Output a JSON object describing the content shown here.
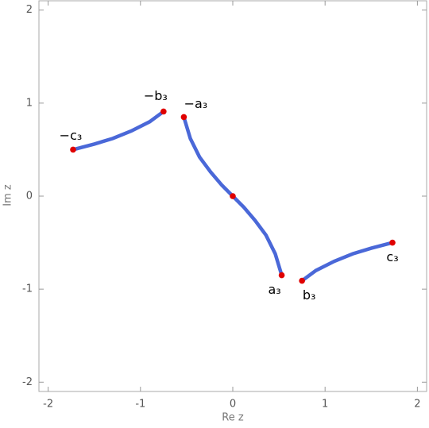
{
  "chart_data": {
    "type": "line",
    "x_label": "Re z",
    "y_label": "Im z",
    "xlim": [
      -2.1,
      2.1
    ],
    "ylim": [
      -2.1,
      2.1
    ],
    "xticks": [
      -2,
      -1,
      0,
      1,
      2
    ],
    "yticks": [
      -2,
      -1,
      0,
      1,
      2
    ],
    "curve_color": "#4a68d8",
    "point_color": "#e00000",
    "curves": [
      {
        "x": [
          -1.73,
          -1.5,
          -1.3,
          -1.1,
          -0.9,
          -0.75
        ],
        "y": [
          0.5,
          0.56,
          0.62,
          0.7,
          0.8,
          0.91
        ]
      },
      {
        "x": [
          -0.53,
          -0.46,
          -0.36,
          -0.24,
          -0.12,
          0,
          0.12,
          0.24,
          0.36,
          0.46,
          0.53
        ],
        "y": [
          0.85,
          0.62,
          0.42,
          0.26,
          0.12,
          0,
          -0.12,
          -0.26,
          -0.42,
          -0.62,
          -0.85
        ]
      },
      {
        "x": [
          0.75,
          0.9,
          1.1,
          1.3,
          1.5,
          1.73
        ],
        "y": [
          -0.91,
          -0.8,
          -0.7,
          -0.62,
          -0.56,
          -0.5
        ]
      }
    ],
    "points": {
      "x": [
        -1.73,
        -0.75,
        -0.53,
        0,
        0.53,
        0.75,
        1.73
      ],
      "y": [
        0.5,
        0.91,
        0.85,
        0,
        -0.85,
        -0.91,
        -0.5
      ],
      "labels": [
        "−c₃",
        "−b₃",
        "−a₃",
        null,
        "a₃",
        "b₃",
        "c₃"
      ]
    }
  }
}
